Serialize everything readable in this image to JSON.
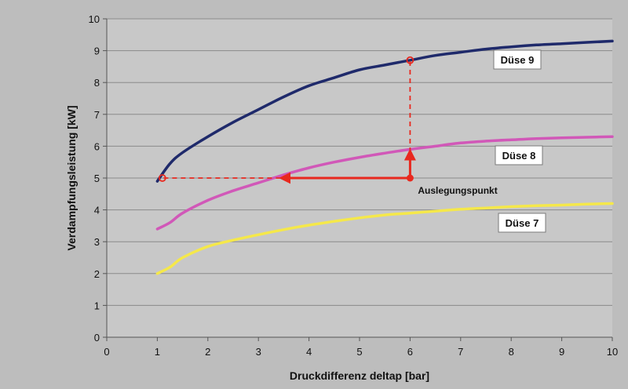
{
  "chart_data": {
    "type": "line",
    "title": "",
    "xlabel": "Druckdifferenz deltap [bar]",
    "ylabel": "Verdampfungsleistung [kW]",
    "xlim": [
      0,
      10
    ],
    "ylim": [
      0,
      10
    ],
    "xticks": [
      0,
      1,
      2,
      3,
      4,
      5,
      6,
      7,
      8,
      9,
      10
    ],
    "yticks": [
      0,
      1,
      2,
      3,
      4,
      5,
      6,
      7,
      8,
      9,
      10
    ],
    "grid": "horizontal",
    "legend": "none",
    "series": [
      {
        "name": "Düse 9",
        "color": "#1f2a6b",
        "x": [
          1.0,
          1.25,
          1.5,
          2.0,
          2.5,
          3.0,
          3.5,
          4.0,
          4.5,
          5.0,
          5.5,
          6.0,
          6.5,
          7.0,
          7.5,
          8.0,
          8.5,
          9.0,
          9.5,
          10.0
        ],
        "y": [
          4.9,
          5.45,
          5.8,
          6.3,
          6.75,
          7.15,
          7.55,
          7.9,
          8.15,
          8.4,
          8.55,
          8.7,
          8.85,
          8.95,
          9.05,
          9.12,
          9.18,
          9.22,
          9.26,
          9.3
        ]
      },
      {
        "name": "Düse 8",
        "color": "#d158b8",
        "x": [
          1.0,
          1.25,
          1.5,
          2.0,
          2.5,
          3.0,
          3.5,
          4.0,
          4.5,
          5.0,
          5.5,
          6.0,
          6.5,
          7.0,
          7.5,
          8.0,
          8.5,
          9.0,
          9.5,
          10.0
        ],
        "y": [
          3.4,
          3.6,
          3.9,
          4.3,
          4.6,
          4.85,
          5.1,
          5.32,
          5.5,
          5.65,
          5.78,
          5.9,
          6.0,
          6.1,
          6.16,
          6.2,
          6.24,
          6.26,
          6.28,
          6.3
        ]
      },
      {
        "name": "Düse 7",
        "color": "#f5e84a",
        "x": [
          1.0,
          1.25,
          1.5,
          2.0,
          2.5,
          3.0,
          3.5,
          4.0,
          4.5,
          5.0,
          5.5,
          6.0,
          6.5,
          7.0,
          7.5,
          8.0,
          8.5,
          9.0,
          9.5,
          10.0
        ],
        "y": [
          2.0,
          2.2,
          2.5,
          2.85,
          3.05,
          3.22,
          3.38,
          3.52,
          3.64,
          3.75,
          3.84,
          3.9,
          3.96,
          4.02,
          4.06,
          4.1,
          4.13,
          4.15,
          4.18,
          4.2
        ]
      }
    ],
    "annotations": {
      "series_labels": [
        {
          "series": "Düse 9",
          "text": "Düse 9"
        },
        {
          "series": "Düse 8",
          "text": "Düse 8"
        },
        {
          "series": "Düse 7",
          "text": "Düse 7"
        }
      ],
      "design_point": {
        "text": "Auslegungspunkt",
        "x": 6.0,
        "y": 5.0,
        "color": "#e8281e",
        "arrow_up_to": [
          6.0,
          5.9
        ],
        "arrow_left_to": [
          3.45,
          5.0
        ],
        "dashed_up_to": [
          6.0,
          8.7
        ],
        "dashed_left_to": [
          1.1,
          5.0
        ],
        "open_markers": [
          [
            6.0,
            8.7
          ],
          [
            1.1,
            5.0
          ]
        ]
      }
    }
  }
}
